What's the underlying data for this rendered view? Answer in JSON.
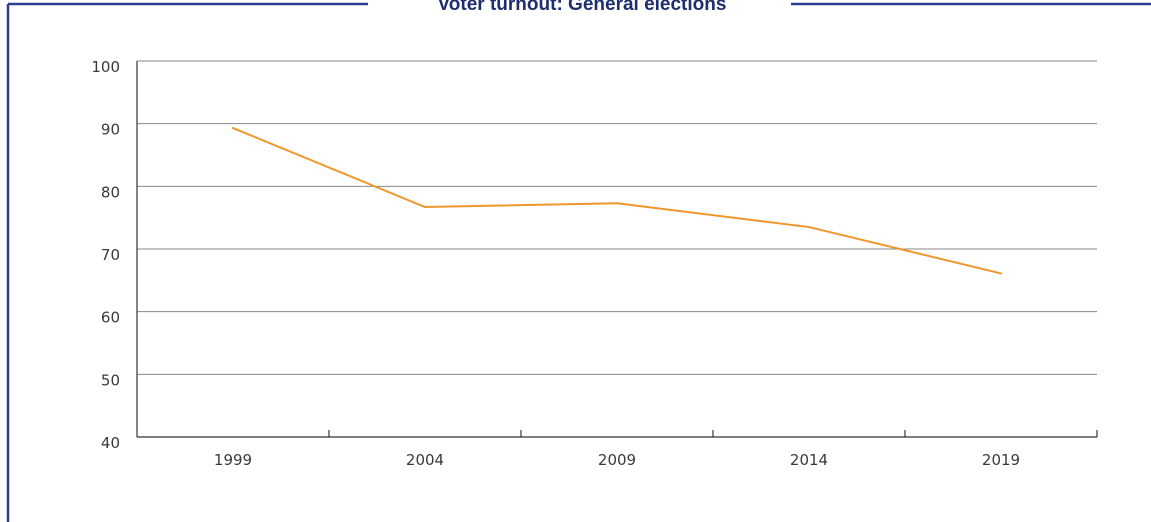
{
  "chart_data": {
    "type": "line",
    "title": "Voter turnout: General elections",
    "xlabel": "",
    "ylabel": "",
    "categories": [
      "1999",
      "2004",
      "2009",
      "2014",
      "2019"
    ],
    "series": [
      {
        "values": [
          89.3,
          76.7,
          77.3,
          73.5,
          66.1
        ]
      }
    ],
    "ylim": [
      40,
      100
    ],
    "yticks": [
      40,
      50,
      60,
      70,
      80,
      90,
      100
    ],
    "grid": true,
    "legend": "none"
  },
  "colors": {
    "line": "#f0962b",
    "frame": "#2e3f8f",
    "title": "#1e2e6e",
    "grid": "#8a8a8a",
    "axis": "#333333"
  }
}
